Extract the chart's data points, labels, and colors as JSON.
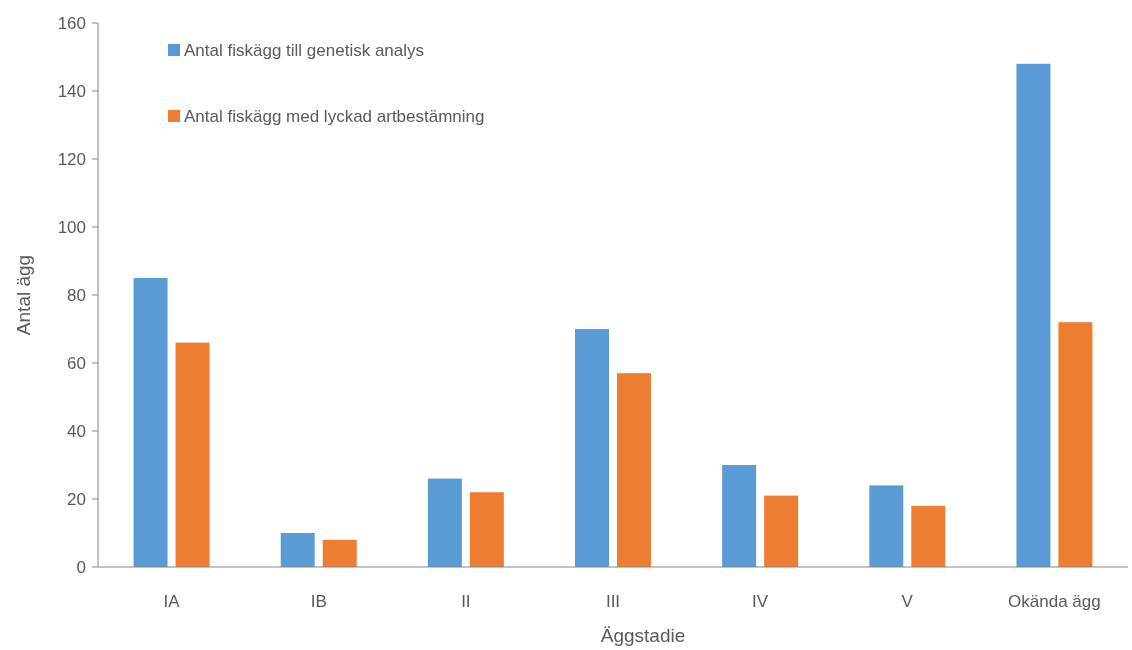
{
  "chart_data": {
    "type": "bar",
    "xlabel": "Äggstadie",
    "ylabel": "Antal ägg",
    "categories": [
      "IA",
      "IB",
      "II",
      "III",
      "IV",
      "V",
      "Okända ägg"
    ],
    "series": [
      {
        "name": "Antal fiskägg till genetisk analys",
        "color": "#5b9bd5",
        "values": [
          85,
          10,
          26,
          70,
          30,
          24,
          148
        ]
      },
      {
        "name": "Antal fiskägg med lyckad artbestämning",
        "color": "#ed7d31",
        "values": [
          66,
          8,
          22,
          57,
          21,
          18,
          72
        ]
      }
    ],
    "ylim": [
      0,
      160
    ],
    "yticks": [
      0,
      20,
      40,
      60,
      80,
      100,
      120,
      140,
      160
    ],
    "legend": "top left"
  }
}
